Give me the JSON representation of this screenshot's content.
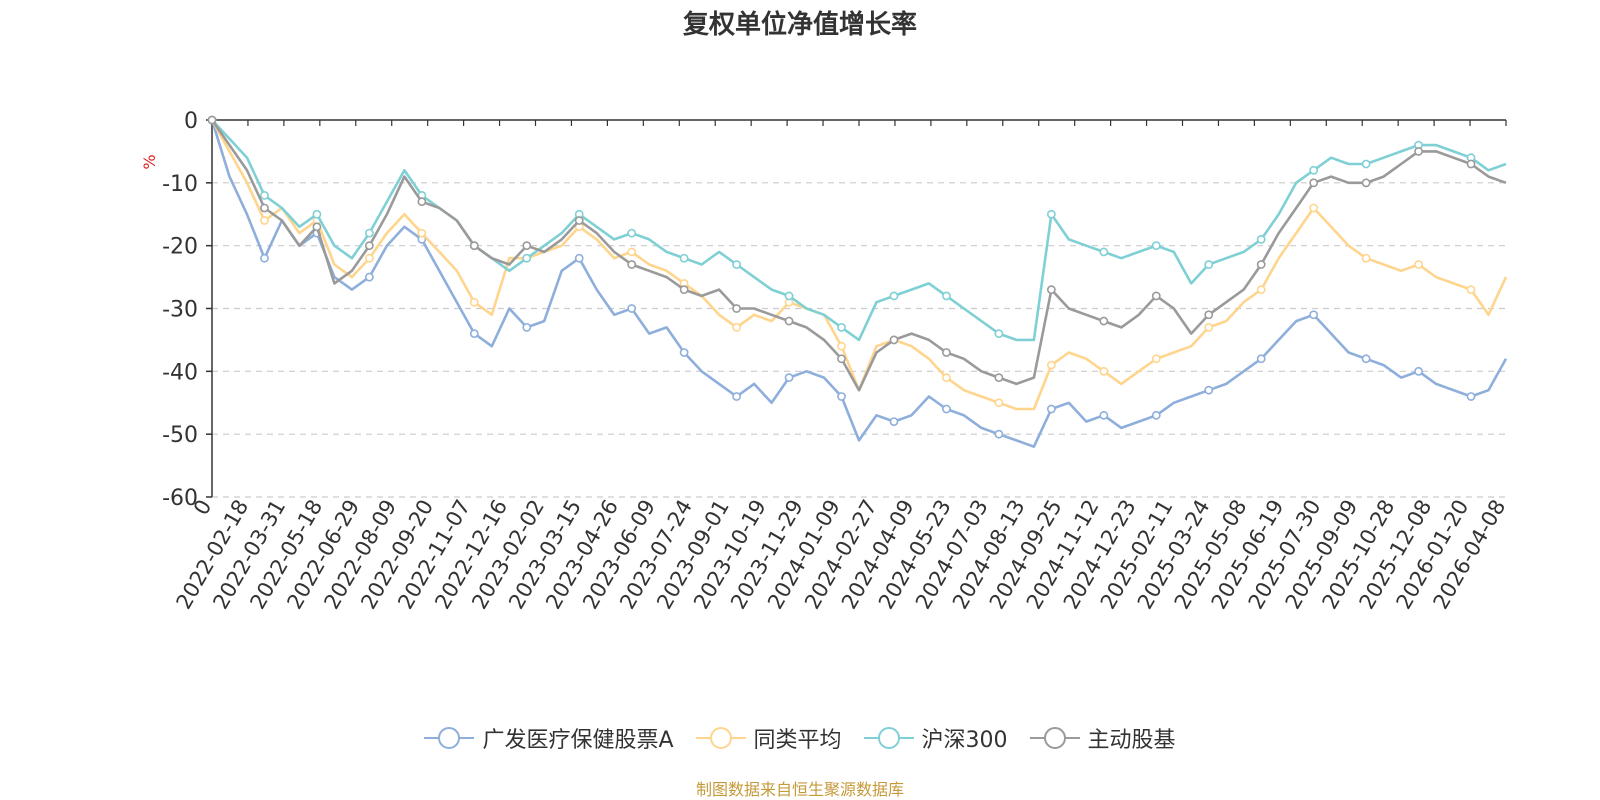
{
  "chart_data": {
    "type": "line",
    "title": "复权单位净值增长率",
    "ylabel": "%",
    "xlabel": "",
    "ylim": [
      -60,
      0
    ],
    "yticks": [
      0,
      -10,
      -20,
      -30,
      -40,
      -50,
      -60
    ],
    "ytick_labels": [
      "0",
      "-10",
      "-20",
      "-30",
      "-40",
      "-50",
      "-60"
    ],
    "x_tick_labels": [
      "0",
      "2022-02-18",
      "2022-03-31",
      "2022-05-18",
      "2022-06-29",
      "2022-08-09",
      "2022-09-20",
      "2022-11-07",
      "2022-12-16",
      "2023-02-02",
      "2023-03-15",
      "2023-04-26",
      "2023-06-09",
      "2023-07-24",
      "2023-09-01",
      "2023-10-19",
      "2023-11-29",
      "2024-01-09",
      "2024-02-27",
      "2024-04-09",
      "2024-05-23",
      "2024-07-03",
      "2024-08-13",
      "2024-09-25",
      "2024-11-12",
      "2024-12-23",
      "2025-02-11",
      "2025-03-24",
      "2025-05-08",
      "2025-06-19",
      "2025-07-30",
      "2025-09-09",
      "2025-10-28",
      "2025-12-08",
      "2026-01-20",
      "2026-04-08"
    ],
    "grid": "dashed horizontal",
    "legend_position": "bottom-center",
    "series": [
      {
        "name": "广发医疗保健股票A",
        "color": "#8eaedb",
        "values": [
          0,
          -9,
          -15,
          -22,
          -16,
          -20,
          -18,
          -25,
          -27,
          -25,
          -20,
          -17,
          -19,
          -24,
          -29,
          -34,
          -36,
          -30,
          -33,
          -32,
          -24,
          -22,
          -27,
          -31,
          -30,
          -34,
          -33,
          -37,
          -40,
          -42,
          -44,
          -42,
          -45,
          -41,
          -40,
          -41,
          -44,
          -51,
          -47,
          -48,
          -47,
          -44,
          -46,
          -47,
          -49,
          -50,
          -51,
          -52,
          -46,
          -45,
          -48,
          -47,
          -49,
          -48,
          -47,
          -45,
          -44,
          -43,
          -42,
          -40,
          -38,
          -35,
          -32,
          -31,
          -34,
          -37,
          -38,
          -39,
          -41,
          -40,
          -42,
          -43,
          -44,
          -43,
          -38
        ]
      },
      {
        "name": "同类平均",
        "color": "#ffd58e",
        "values": [
          0,
          -5,
          -10,
          -16,
          -14,
          -18,
          -16,
          -23,
          -25,
          -22,
          -18,
          -15,
          -18,
          -21,
          -24,
          -29,
          -31,
          -22,
          -22,
          -21,
          -20,
          -17,
          -19,
          -22,
          -21,
          -23,
          -24,
          -26,
          -28,
          -31,
          -33,
          -31,
          -32,
          -29,
          -30,
          -31,
          -36,
          -43,
          -36,
          -35,
          -36,
          -38,
          -41,
          -43,
          -44,
          -45,
          -46,
          -46,
          -39,
          -37,
          -38,
          -40,
          -42,
          -40,
          -38,
          -37,
          -36,
          -33,
          -32,
          -29,
          -27,
          -22,
          -18,
          -14,
          -17,
          -20,
          -22,
          -23,
          -24,
          -23,
          -25,
          -26,
          -27,
          -31,
          -25
        ]
      },
      {
        "name": "沪深300",
        "color": "#7fd0d4",
        "values": [
          0,
          -3,
          -6,
          -12,
          -14,
          -17,
          -15,
          -20,
          -22,
          -18,
          -13,
          -8,
          -12,
          -14,
          -16,
          -20,
          -22,
          -24,
          -22,
          -20,
          -18,
          -15,
          -17,
          -19,
          -18,
          -19,
          -21,
          -22,
          -23,
          -21,
          -23,
          -25,
          -27,
          -28,
          -30,
          -31,
          -33,
          -35,
          -29,
          -28,
          -27,
          -26,
          -28,
          -30,
          -32,
          -34,
          -35,
          -35,
          -15,
          -19,
          -20,
          -21,
          -22,
          -21,
          -20,
          -21,
          -26,
          -23,
          -22,
          -21,
          -19,
          -15,
          -10,
          -8,
          -6,
          -7,
          -7,
          -6,
          -5,
          -4,
          -4,
          -5,
          -6,
          -8,
          -7
        ]
      },
      {
        "name": "主动股基",
        "color": "#9a9a9a",
        "values": [
          0,
          -4,
          -8,
          -14,
          -16,
          -20,
          -17,
          -26,
          -24,
          -20,
          -15,
          -9,
          -13,
          -14,
          -16,
          -20,
          -22,
          -23,
          -20,
          -21,
          -19,
          -16,
          -18,
          -21,
          -23,
          -24,
          -25,
          -27,
          -28,
          -27,
          -30,
          -30,
          -31,
          -32,
          -33,
          -35,
          -38,
          -43,
          -37,
          -35,
          -34,
          -35,
          -37,
          -38,
          -40,
          -41,
          -42,
          -41,
          -27,
          -30,
          -31,
          -32,
          -33,
          -31,
          -28,
          -30,
          -34,
          -31,
          -29,
          -27,
          -23,
          -18,
          -14,
          -10,
          -9,
          -10,
          -10,
          -9,
          -7,
          -5,
          -5,
          -6,
          -7,
          -9,
          -10
        ]
      }
    ]
  },
  "source_text": "制图数据来自恒生聚源数据库"
}
